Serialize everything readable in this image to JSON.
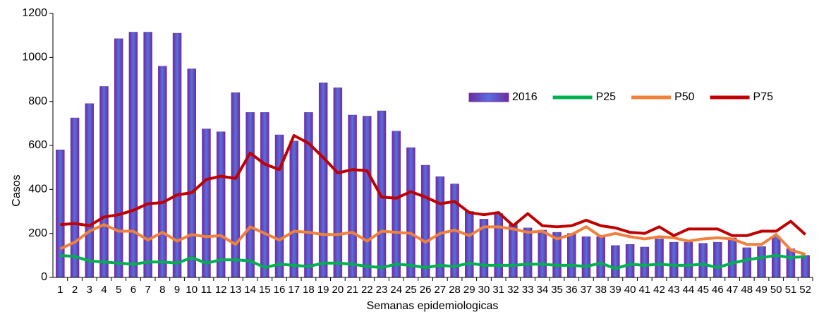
{
  "chart_data": {
    "type": "bar",
    "y_label": "Casos",
    "x_label": "Semanas  epidemiologicas",
    "categories": [
      "1",
      "2",
      "3",
      "4",
      "5",
      "6",
      "7",
      "8",
      "9",
      "10",
      "11",
      "12",
      "13",
      "14",
      "15",
      "16",
      "17",
      "18",
      "19",
      "20",
      "21",
      "22",
      "23",
      "24",
      "25",
      "26",
      "27",
      "28",
      "29",
      "30",
      "31",
      "32",
      "33",
      "34",
      "35",
      "36",
      "37",
      "38",
      "39",
      "40",
      "41",
      "42",
      "43",
      "44",
      "45",
      "46",
      "47",
      "48",
      "49",
      "50",
      "51",
      "52"
    ],
    "series": [
      {
        "name": "2016",
        "type": "bar",
        "color": "#7030a0",
        "values": [
          580,
          725,
          790,
          868,
          1085,
          1115,
          1115,
          960,
          1110,
          948,
          675,
          662,
          840,
          750,
          750,
          648,
          620,
          750,
          885,
          862,
          738,
          733,
          757,
          665,
          590,
          510,
          458,
          425,
          300,
          265,
          290,
          240,
          225,
          215,
          205,
          200,
          185,
          185,
          145,
          150,
          138,
          175,
          160,
          160,
          155,
          160,
          180,
          135,
          140,
          185,
          130,
          100
        ]
      },
      {
        "name": "P25",
        "type": "line",
        "color": "#00b050",
        "values": [
          100,
          95,
          75,
          70,
          65,
          60,
          70,
          70,
          65,
          90,
          65,
          80,
          80,
          75,
          45,
          60,
          55,
          50,
          65,
          65,
          60,
          50,
          45,
          60,
          55,
          45,
          55,
          50,
          65,
          55,
          55,
          55,
          60,
          60,
          55,
          55,
          50,
          65,
          40,
          60,
          55,
          60,
          55,
          55,
          60,
          45,
          65,
          80,
          90,
          100,
          90,
          95
        ]
      },
      {
        "name": "P50",
        "type": "line",
        "color": "#f0803c",
        "values": [
          130,
          160,
          210,
          240,
          210,
          210,
          170,
          205,
          165,
          195,
          185,
          190,
          150,
          230,
          200,
          170,
          210,
          205,
          195,
          195,
          205,
          165,
          210,
          205,
          200,
          160,
          200,
          215,
          190,
          230,
          230,
          220,
          205,
          210,
          175,
          195,
          230,
          185,
          200,
          185,
          175,
          185,
          180,
          165,
          175,
          180,
          175,
          150,
          150,
          195,
          125,
          105
        ]
      },
      {
        "name": "P75",
        "type": "line",
        "color": "#c00000",
        "values": [
          240,
          245,
          235,
          275,
          285,
          305,
          335,
          340,
          375,
          385,
          445,
          460,
          450,
          565,
          515,
          490,
          645,
          610,
          545,
          475,
          490,
          485,
          365,
          360,
          390,
          365,
          335,
          345,
          295,
          285,
          295,
          235,
          290,
          235,
          230,
          235,
          260,
          235,
          225,
          205,
          200,
          230,
          190,
          220,
          220,
          220,
          190,
          190,
          210,
          210,
          255,
          195
        ]
      }
    ],
    "ylim": [
      0,
      1200
    ],
    "yticks": [
      0,
      200,
      400,
      600,
      800,
      1000,
      1200
    ],
    "grid": false,
    "legend": "top-right"
  }
}
